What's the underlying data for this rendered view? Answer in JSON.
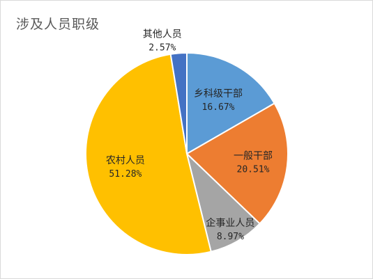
{
  "chart_data": {
    "type": "pie",
    "title": "涉及人员职级",
    "categories": [
      "乡科级干部",
      "一般干部",
      "企事业人员",
      "农村人员",
      "其他人员"
    ],
    "values": [
      16.67,
      20.51,
      8.97,
      51.28,
      2.57
    ],
    "value_labels": [
      "16.67%",
      "20.51%",
      "8.97%",
      "51.28%",
      "2.57%"
    ],
    "colors": [
      "#5b9bd5",
      "#ed7d31",
      "#a5a5a5",
      "#ffc000",
      "#4472c4"
    ],
    "start_angle_deg": 0,
    "direction": "clockwise",
    "legend": "none",
    "data_labels": "inside"
  }
}
